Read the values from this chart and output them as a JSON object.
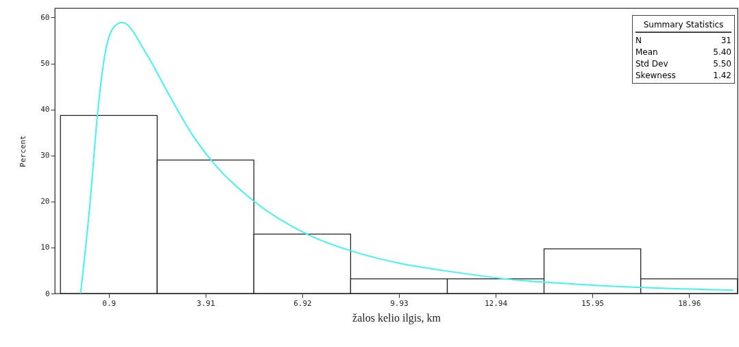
{
  "chart_data": {
    "type": "histogram",
    "xlabel": "žalos kelio ilgis, km",
    "ylabel": "Percent",
    "bins": [
      -0.605,
      2.405,
      5.415,
      8.425,
      11.435,
      14.445,
      17.455,
      20.465
    ],
    "values": [
      38.7,
      29.0,
      12.9,
      3.2,
      3.2,
      9.7,
      3.2
    ],
    "color": "#ffffff",
    "xlim": [
      -0.78,
      20.47
    ],
    "xticks": [
      0.9,
      3.91,
      6.92,
      9.93,
      12.94,
      15.95,
      18.96
    ],
    "ylim": [
      0,
      62
    ],
    "yticks": [
      0,
      10,
      20,
      30,
      40,
      50,
      60
    ],
    "series": [
      {
        "type": "line",
        "color": "#40f4f4",
        "x": [
          0.02,
          0.31,
          0.55,
          0.77,
          1.08,
          1.32,
          2.07,
          2.78,
          3.49,
          4.19,
          5.39,
          7.13,
          8.43,
          9.93,
          11.41,
          13.49,
          16.0,
          20.34
        ],
        "values": [
          0,
          19.2,
          39.1,
          51.6,
          58.1,
          58.9,
          52.1,
          43.1,
          34.6,
          28.1,
          20.2,
          12.7,
          9.3,
          6.6,
          4.9,
          3.0,
          1.8,
          0.7
        ]
      }
    ],
    "annotations": [
      "Summary Statistics",
      "N",
      "31",
      "Mean",
      "5.40",
      "Std Dev",
      "5.50",
      "Skewness",
      "1.42"
    ]
  }
}
